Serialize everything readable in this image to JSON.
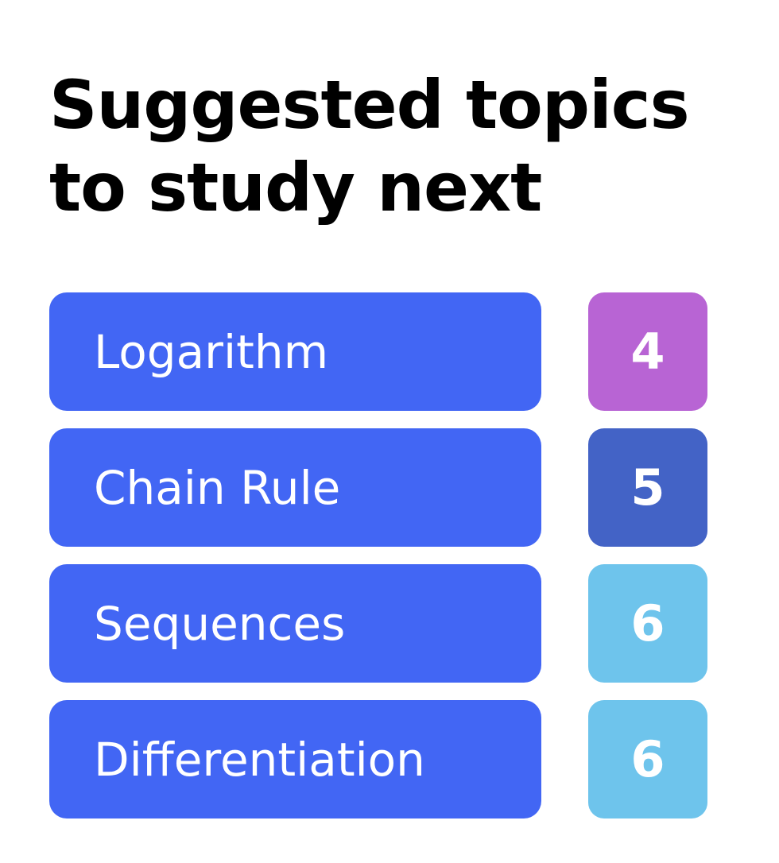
{
  "header": {
    "title_line_1": "Suggested topics",
    "title_line_2": "to study next"
  },
  "topics": [
    {
      "label": "Logarithm",
      "count": "4",
      "count_color": "#b864d4"
    },
    {
      "label": "Chain Rule",
      "count": "5",
      "count_color": "#4363c6"
    },
    {
      "label": "Sequences",
      "count": "6",
      "count_color": "#6ec4ec"
    },
    {
      "label": "Differentiation",
      "count": "6",
      "count_color": "#6ec4ec"
    }
  ],
  "theme": {
    "pill_color": "#4266f4",
    "text_color": "#ffffff",
    "background": "#ffffff"
  }
}
